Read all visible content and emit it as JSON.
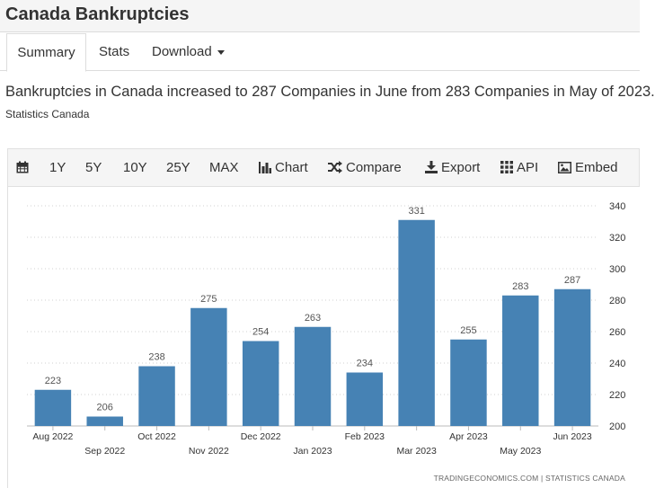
{
  "header": {
    "title": "Canada Bankruptcies"
  },
  "tabs": [
    {
      "label": "Summary"
    },
    {
      "label": "Stats"
    },
    {
      "label": "Download"
    }
  ],
  "summary": {
    "description": "Bankruptcies in Canada increased to 287 Companies in June from 283 Companies in May of 2023.",
    "source": "Statistics Canada"
  },
  "toolbar": {
    "calendar_icon": "calendar-icon",
    "ranges": [
      "1Y",
      "5Y",
      "10Y",
      "25Y",
      "MAX"
    ],
    "chart_label": "Chart",
    "compare_label": "Compare",
    "export_label": "Export",
    "api_label": "API",
    "embed_label": "Embed"
  },
  "credits": "TRADINGECONOMICS.COM  |  STATISTICS CANADA",
  "colors": {
    "bar": "#4682b4",
    "grid": "#d0d0d0",
    "text": "#333333"
  },
  "chart_data": {
    "type": "bar",
    "categories": [
      "Aug 2022",
      "Sep 2022",
      "Oct 2022",
      "Nov 2022",
      "Dec 2022",
      "Jan 2023",
      "Feb 2023",
      "Mar 2023",
      "Apr 2023",
      "May 2023",
      "Jun 2023"
    ],
    "values": [
      223,
      206,
      238,
      275,
      254,
      263,
      234,
      331,
      255,
      283,
      287
    ],
    "ylim": [
      200,
      340
    ],
    "yticks": [
      200,
      220,
      240,
      260,
      280,
      300,
      320,
      340
    ],
    "y_axis_side": "right",
    "grid": true,
    "legend": "none",
    "data_labels": true
  }
}
